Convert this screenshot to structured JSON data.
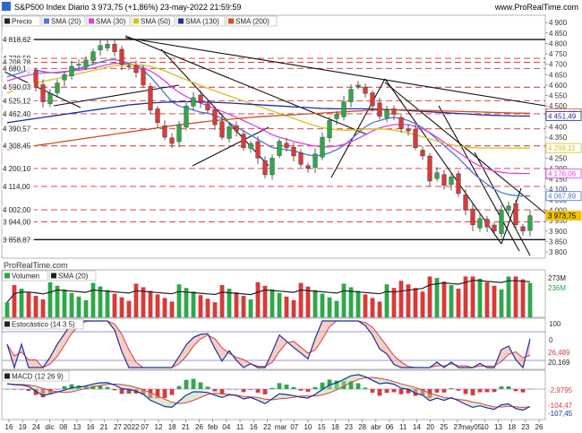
{
  "header": {
    "title": "S&P500 Index Diario 3 973,75 (+1,86%) 23-may-2022 21:59:59",
    "site": "www.ProRealTime.com",
    "watermark": "ProRealTime.com"
  },
  "price_panel": {
    "legend": [
      {
        "label": "Precio",
        "color": "#222222"
      },
      {
        "label": "SMA (20)",
        "color": "#4a78d6"
      },
      {
        "label": "SMA (30)",
        "color": "#e040e0"
      },
      {
        "label": "SMA (50)",
        "color": "#d8c020"
      },
      {
        "label": "SMA (130)",
        "color": "#1c2fa0"
      },
      {
        "label": "SMA (200)",
        "color": "#d05020"
      }
    ],
    "ylim": [
      3770,
      4935
    ],
    "y_ticks": [
      3800,
      3850,
      3900,
      3950,
      4000,
      4050,
      4100,
      4150,
      4200,
      4250,
      4300,
      4350,
      4400,
      4450,
      4500,
      4550,
      4600,
      4650,
      4700,
      4750,
      4800,
      4850,
      4900
    ],
    "y_tick_labels": [
      "3 800",
      "3 850",
      "3 900",
      "3 950",
      "4 000",
      "4 050",
      "4 100",
      "4 150",
      "4 200",
      "4 250",
      "4 300",
      "4 350",
      "4 400",
      "4 450",
      "4 500",
      "4 550",
      "4 600",
      "4 650",
      "4 700",
      "4 750",
      "4 800",
      "4 850",
      "4 900"
    ],
    "levels": [
      {
        "value": 4818.62,
        "label": "4 818,62",
        "style": "solid"
      },
      {
        "value": 4728.59,
        "label": "4 728,59",
        "style": "dash"
      },
      {
        "value": 4708.78,
        "label": "4 708,78",
        "style": "dash"
      },
      {
        "value": 4680.1,
        "label": "4 680,1",
        "style": "dash"
      },
      {
        "value": 4590.03,
        "label": "4 590,03",
        "style": "dash"
      },
      {
        "value": 4525.12,
        "label": "4 525,12",
        "style": "dash"
      },
      {
        "value": 4462.4,
        "label": "4 462,40",
        "style": "dash"
      },
      {
        "value": 4390.57,
        "label": "4 390,57",
        "style": "dash"
      },
      {
        "value": 4308.45,
        "label": "4 308,45",
        "style": "dash"
      },
      {
        "value": 4200.1,
        "label": "4 200,10",
        "style": "dash"
      },
      {
        "value": 4114.0,
        "label": "4 114,00",
        "style": "dash"
      },
      {
        "value": 4002.0,
        "label": "4 002,00",
        "style": "dash"
      },
      {
        "value": 3944.0,
        "label": "3 944,00",
        "style": "dash"
      },
      {
        "value": 3858.87,
        "label": "3 858,87",
        "style": "solid"
      }
    ],
    "right_tags": [
      {
        "value": 4464.85,
        "label": "4 464,85",
        "color": "#d05020"
      },
      {
        "value": 4451.49,
        "label": "4 451,49",
        "color": "#1c2fa0"
      },
      {
        "value": 4298.11,
        "label": "4 298,11",
        "color": "#d8c020"
      },
      {
        "value": 4176.06,
        "label": "4 176,06",
        "color": "#e040e0"
      },
      {
        "value": 4067.89,
        "label": "4 067,89",
        "color": "#4a78d6"
      },
      {
        "value": 3973.75,
        "label": "3 973,75",
        "color": "#f2c200"
      }
    ]
  },
  "volume_panel": {
    "legend": [
      {
        "label": "Volumen",
        "color": "#26a641"
      },
      {
        "label": "SMA (20)",
        "color": "#222222"
      }
    ],
    "tags": [
      {
        "label": "273M",
        "color": "#222222"
      },
      {
        "label": "236M",
        "color": "#26a641"
      }
    ]
  },
  "stoch_panel": {
    "legend": [
      {
        "label": "Estocástico (14 3 5)",
        "color": "#222222"
      }
    ],
    "y_tick_labels": [
      "100",
      "0"
    ],
    "tags": [
      {
        "label": "26,489",
        "color": "#d04040"
      },
      {
        "label": "20,169",
        "color": "#222222"
      }
    ]
  },
  "macd_panel": {
    "legend": [
      {
        "label": "MACD (12 26 9)",
        "color": "#222222"
      }
    ],
    "tags": [
      {
        "label": "-2,9795",
        "color": "#d04040"
      },
      {
        "label": "-104,47",
        "color": "#d04040"
      },
      {
        "label": "-107,45",
        "color": "#1c2fa0"
      }
    ]
  },
  "x_axis": {
    "labels": [
      "16",
      "19",
      "24",
      "dic",
      "08",
      "13",
      "16",
      "21",
      "27",
      "2022",
      "07",
      "12",
      "18",
      "21",
      "26",
      "feb",
      "04",
      "11",
      "16",
      "22",
      "mar",
      "07",
      "10",
      "15",
      "18",
      "23",
      "28",
      "abr",
      "06",
      "11",
      "14",
      "20",
      "25",
      "27",
      "may05",
      "10",
      "13",
      "18",
      "23",
      "26"
    ]
  },
  "chart_data": {
    "type": "line",
    "title": "S&P500 Index Diario",
    "series": [
      {
        "name": "Precio",
        "values": [
          4700,
          4690,
          4695,
          4670,
          4590,
          4520,
          4560,
          4610,
          4650,
          4690,
          4700,
          4720,
          4760,
          4790,
          4796,
          4760,
          4700,
          4690,
          4660,
          4600,
          4480,
          4420,
          4350,
          4320,
          4410,
          4500,
          4540,
          4520,
          4480,
          4410,
          4350,
          4400,
          4380,
          4300,
          4320,
          4250,
          4170,
          4250,
          4330,
          4300,
          4260,
          4220,
          4200,
          4270,
          4350,
          4430,
          4460,
          4520,
          4580,
          4600,
          4560,
          4500,
          4450,
          4480,
          4460,
          4390,
          4380,
          4300,
          4260,
          4140,
          4180,
          4120,
          4160,
          4080,
          4000,
          3930,
          3960,
          3920,
          3900,
          4000,
          4020,
          3930,
          3900,
          3973.75
        ]
      },
      {
        "name": "SMA (20)",
        "values": [
          4640,
          4650,
          4660,
          4670,
          4672,
          4665,
          4660,
          4658,
          4662,
          4670,
          4680,
          4690,
          4700,
          4710,
          4720,
          4722,
          4715,
          4705,
          4690,
          4670,
          4640,
          4600,
          4560,
          4520,
          4500,
          4490,
          4480,
          4470,
          4465,
          4455,
          4440,
          4420,
          4400,
          4380,
          4360,
          4340,
          4320,
          4300,
          4295,
          4290,
          4285,
          4275,
          4265,
          4260,
          4265,
          4275,
          4290,
          4310,
          4340,
          4370,
          4400,
          4420,
          4430,
          4440,
          4445,
          4440,
          4430,
          4415,
          4395,
          4370,
          4340,
          4310,
          4280,
          4250,
          4215,
          4180,
          4150,
          4125,
          4100,
          4085,
          4075,
          4070,
          4068,
          4067.89
        ]
      },
      {
        "name": "SMA (30)",
        "values": [
          4620,
          4630,
          4640,
          4648,
          4655,
          4658,
          4660,
          4662,
          4665,
          4668,
          4672,
          4676,
          4682,
          4690,
          4698,
          4704,
          4705,
          4702,
          4695,
          4684,
          4668,
          4646,
          4620,
          4590,
          4565,
          4545,
          4528,
          4514,
          4500,
          4488,
          4474,
          4460,
          4446,
          4430,
          4414,
          4398,
          4380,
          4362,
          4350,
          4340,
          4330,
          4322,
          4314,
          4308,
          4304,
          4304,
          4308,
          4316,
          4328,
          4344,
          4362,
          4380,
          4394,
          4404,
          4410,
          4412,
          4410,
          4402,
          4390,
          4372,
          4350,
          4326,
          4302,
          4278,
          4254,
          4230,
          4212,
          4198,
          4188,
          4182,
          4178,
          4177,
          4176,
          4176.06
        ]
      },
      {
        "name": "SMA (50)",
        "values": [
          4560,
          4575,
          4588,
          4600,
          4610,
          4618,
          4625,
          4632,
          4640,
          4648,
          4655,
          4662,
          4670,
          4678,
          4686,
          4692,
          4696,
          4698,
          4698,
          4696,
          4690,
          4680,
          4668,
          4654,
          4640,
          4626,
          4612,
          4598,
          4585,
          4572,
          4560,
          4548,
          4536,
          4524,
          4512,
          4500,
          4488,
          4476,
          4464,
          4452,
          4440,
          4428,
          4416,
          4405,
          4396,
          4390,
          4386,
          4384,
          4384,
          4386,
          4388,
          4390,
          4390,
          4388,
          4384,
          4378,
          4370,
          4362,
          4352,
          4342,
          4332,
          4322,
          4314,
          4308,
          4303,
          4300,
          4298.5,
          4298.3,
          4298.2,
          4298.15,
          4298.13,
          4298.12,
          4298.11,
          4298.11
        ]
      },
      {
        "name": "SMA (130)",
        "values": [
          4420,
          4425,
          4430,
          4435,
          4440,
          4445,
          4450,
          4455,
          4460,
          4465,
          4470,
          4475,
          4480,
          4485,
          4490,
          4495,
          4500,
          4505,
          4508,
          4511,
          4514,
          4516,
          4518,
          4519,
          4520,
          4520,
          4520,
          4519,
          4518,
          4517,
          4516,
          4514,
          4512,
          4510,
          4508,
          4506,
          4504,
          4502,
          4500,
          4498,
          4496,
          4494,
          4492,
          4490,
          4488,
          4487,
          4486,
          4486,
          4486,
          4486,
          4486,
          4485,
          4484,
          4483,
          4482,
          4480,
          4478,
          4476,
          4474,
          4472,
          4470,
          4468,
          4466,
          4464,
          4462,
          4460,
          4458,
          4456,
          4455,
          4454,
          4453,
          4452,
          4451.7,
          4451.49
        ]
      },
      {
        "name": "SMA (200)",
        "values": [
          4290,
          4295,
          4300,
          4305,
          4310,
          4315,
          4320,
          4325,
          4330,
          4335,
          4340,
          4345,
          4350,
          4355,
          4360,
          4365,
          4370,
          4375,
          4380,
          4385,
          4390,
          4395,
          4400,
          4405,
          4410,
          4414,
          4418,
          4422,
          4426,
          4430,
          4433,
          4436,
          4439,
          4442,
          4445,
          4448,
          4450,
          4452,
          4454,
          4456,
          4458,
          4460,
          4462,
          4464,
          4466,
          4468,
          4470,
          4472,
          4474,
          4476,
          4478,
          4480,
          4481,
          4482,
          4482,
          4482,
          4481,
          4480,
          4479,
          4478,
          4477,
          4476,
          4475,
          4474,
          4473,
          4472,
          4471,
          4470,
          4469,
          4468,
          4467,
          4466,
          4465.5,
          4464.85
        ]
      }
    ],
    "ylim": [
      3770,
      4935
    ],
    "xlabel": "",
    "ylabel": "",
    "grid": false,
    "legend": "top-left"
  }
}
